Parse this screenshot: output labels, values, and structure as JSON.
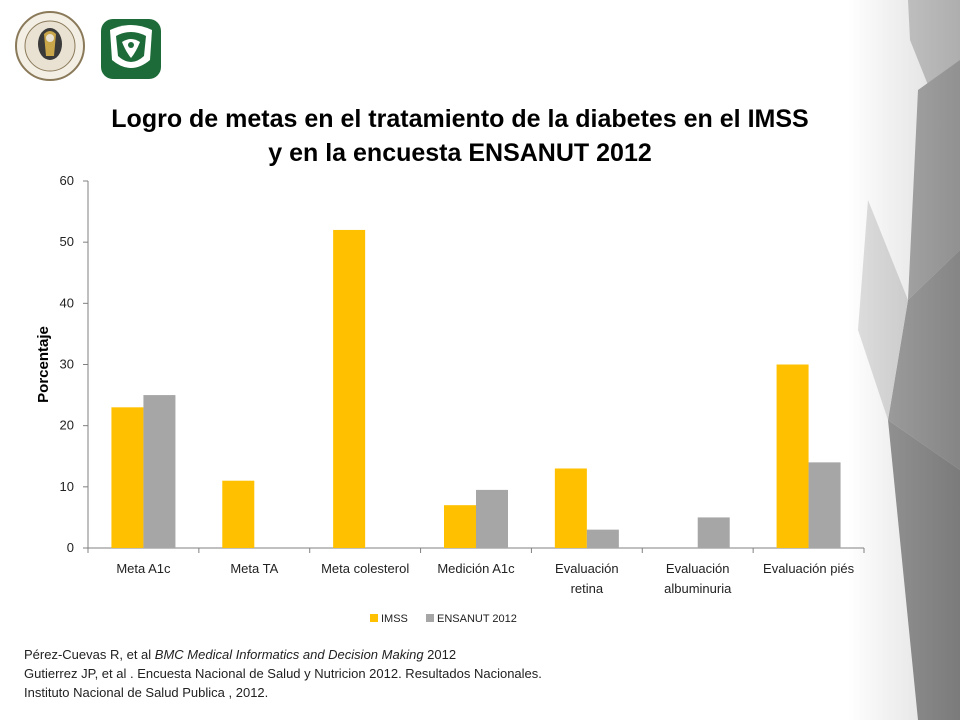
{
  "title_line1": "Logro de metas en el tratamiento de la diabetes en el IMSS",
  "title_line2": "y en la encuesta ENSANUT 2012",
  "colors": {
    "imss": "#FFC000",
    "ensanut": "#A6A6A6",
    "axis": "#808080"
  },
  "icons": {
    "left_logo": "academia-nacional-medicina-seal-icon",
    "right_logo": "imss-eagle-logo-icon"
  },
  "seal_text": {
    "top": "ACADEMIA NACIONAL DE MEDICINA",
    "city": "MEXICO",
    "anniversary": "150 AÑOS"
  },
  "chart_data": {
    "type": "bar",
    "title": "",
    "ylabel": "Porcentaje",
    "xlabel": "",
    "ylim": [
      0,
      60
    ],
    "yticks": [
      0,
      10,
      20,
      30,
      40,
      50,
      60
    ],
    "categories": [
      [
        "Meta A1c"
      ],
      [
        "Meta TA"
      ],
      [
        "Meta colesterol"
      ],
      [
        "Medición A1c"
      ],
      [
        "Evaluación",
        "retina"
      ],
      [
        "Evaluación",
        "albuminuria"
      ],
      [
        "Evaluación piés"
      ]
    ],
    "series": [
      {
        "name": "IMSS",
        "color": "#FFC000",
        "values": [
          23,
          11,
          52,
          7,
          13,
          null,
          30
        ]
      },
      {
        "name": "ENSANUT 2012",
        "color": "#A6A6A6",
        "values": [
          25,
          null,
          null,
          9.5,
          3,
          5,
          14
        ]
      }
    ],
    "grid": false,
    "legend_position": "bottom"
  },
  "references": [
    {
      "plain_start": "Pérez-Cuevas R, et al ",
      "italic": "BMC Medical Informatics and Decision Making",
      "plain_end": " 2012"
    },
    {
      "plain_start": "Gutierrez JP, et al . Encuesta Nacional de Salud y Nutricion 2012. Resultados Nacionales.",
      "italic": "",
      "plain_end": ""
    },
    {
      "plain_start": "Instituto Nacional de Salud Publica , 2012.",
      "italic": "",
      "plain_end": ""
    }
  ]
}
